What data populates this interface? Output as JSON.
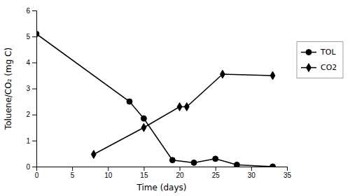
{
  "chart_data": {
    "type": "line",
    "xlabel": "Time (days)",
    "ylabel": "Toluene/CO₂ (mg C)",
    "series": [
      {
        "name": "TOL",
        "color": "#000000",
        "marker": "circle",
        "x": [
          0,
          13,
          15,
          19,
          22,
          25,
          28,
          33
        ],
        "values": [
          5.1,
          2.5,
          1.85,
          0.25,
          0.15,
          0.3,
          0.07,
          0.0
        ]
      },
      {
        "name": "CO2",
        "color": "#000000",
        "marker": "diamond",
        "x": [
          8,
          15,
          20,
          21,
          26,
          33
        ],
        "values": [
          0.47,
          1.5,
          2.3,
          2.3,
          3.55,
          3.5
        ]
      }
    ],
    "xlim": [
      0,
      35
    ],
    "ylim": [
      0,
      6
    ],
    "xticks": [
      0,
      5,
      10,
      15,
      20,
      25,
      30,
      35
    ],
    "yticks": [
      0,
      1,
      2,
      3,
      4,
      5,
      6
    ],
    "grid": false,
    "legend": "right"
  }
}
